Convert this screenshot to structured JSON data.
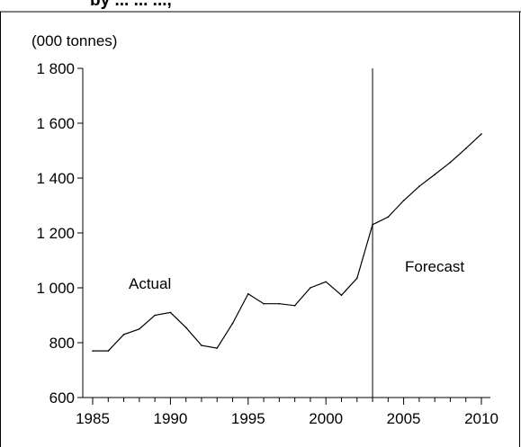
{
  "header": {
    "fragment": "by ... ... ...,"
  },
  "chart_data": {
    "type": "line",
    "unit_label": "(000 tonnes)",
    "x": [
      1985,
      1986,
      1987,
      1988,
      1989,
      1990,
      1991,
      1992,
      1993,
      1994,
      1995,
      1996,
      1997,
      1998,
      1999,
      2000,
      2001,
      2002,
      2003,
      2004,
      2005,
      2006,
      2007,
      2008,
      2009,
      2010
    ],
    "series": [
      {
        "values": [
          770,
          770,
          830,
          850,
          900,
          910,
          855,
          790,
          780,
          870,
          978,
          942,
          942,
          935,
          1000,
          1022,
          973,
          1035,
          1230,
          1258,
          1318,
          1370,
          1413,
          1457,
          1508,
          1561
        ]
      }
    ],
    "xlim": [
      1985,
      2010
    ],
    "ylim": [
      600,
      1800
    ],
    "x_ticks": [
      1985,
      1990,
      1995,
      2000,
      2005,
      2010
    ],
    "y_ticks": [
      600,
      800,
      1000,
      1200,
      1400,
      1600,
      1800
    ],
    "y_tick_labels": [
      "600",
      "800",
      "1 000",
      "1 200",
      "1 400",
      "1 600",
      "1 800"
    ],
    "divider_x": 2003,
    "annotations": {
      "actual": "Actual",
      "forecast": "Forecast"
    },
    "grid": false
  }
}
